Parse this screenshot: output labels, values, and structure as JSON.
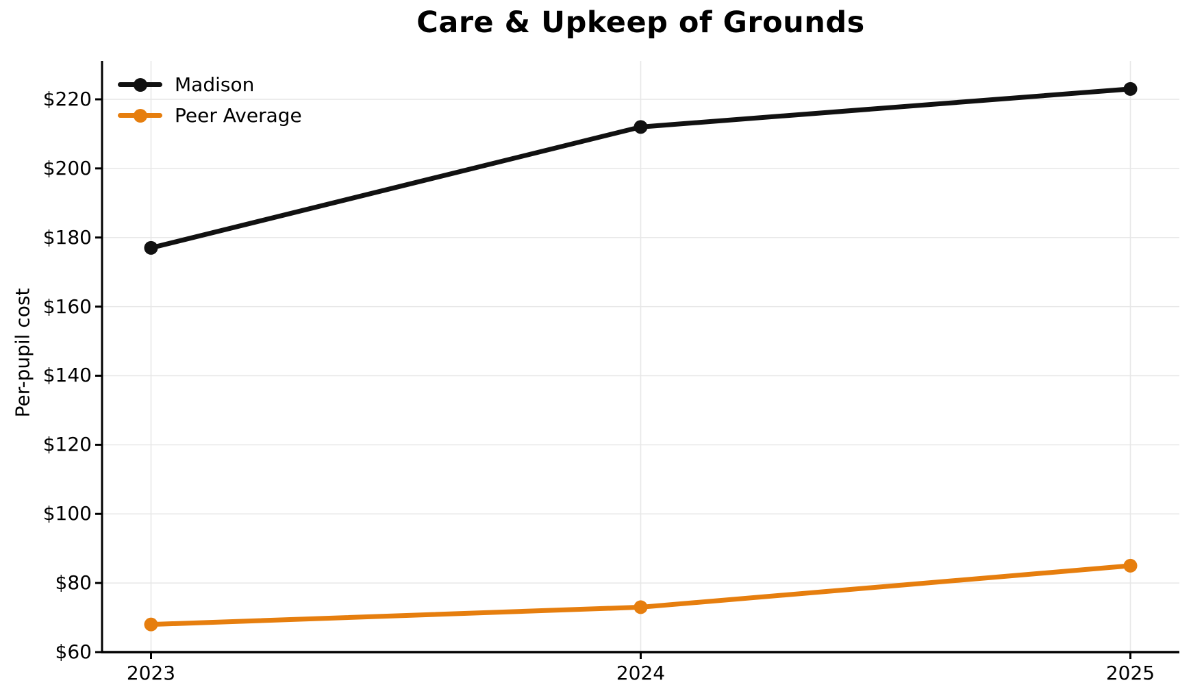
{
  "chart_data": {
    "type": "line",
    "title": "Care & Upkeep of Grounds",
    "xlabel": "",
    "ylabel": "Per-pupil cost",
    "x": [
      2023,
      2024,
      2025
    ],
    "x_tick_labels": [
      "2023",
      "2024",
      "2025"
    ],
    "y_tick_values": [
      60,
      80,
      100,
      120,
      140,
      160,
      180,
      200,
      220
    ],
    "y_tick_labels": [
      "$60",
      "$80",
      "$100",
      "$120",
      "$140",
      "$160",
      "$180",
      "$200",
      "$220"
    ],
    "xlim": [
      2022.9,
      2025.1
    ],
    "ylim": [
      60,
      231.1
    ],
    "grid": "both",
    "legend_position": "upper-left",
    "series": [
      {
        "name": "Madison",
        "values": [
          177,
          212,
          223
        ],
        "color": "#111111"
      },
      {
        "name": "Peer Average",
        "values": [
          68,
          73,
          85
        ],
        "color": "#E67E0E"
      }
    ]
  },
  "colors": {
    "background": "#ffffff",
    "grid": "#e7e7e7",
    "axis": "#000000",
    "text": "#000000"
  }
}
